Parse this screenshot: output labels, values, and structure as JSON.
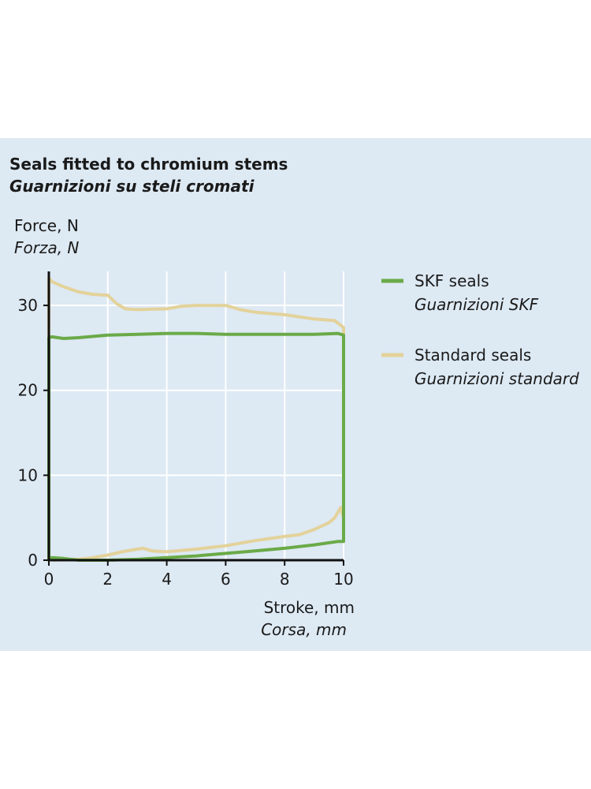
{
  "colors": {
    "background": "#dde9f3",
    "skf": "#6aaa48",
    "standard": "#e3d29a",
    "grid": "#ffffff",
    "axis": "#111111"
  },
  "chart_data": {
    "type": "line",
    "title": "Seals fitted to chromium stems",
    "subtitle": "Guarnizioni su steli cromati",
    "ylabel": "Force, N",
    "ylabel_it": "Forza, N",
    "xlabel": "Stroke, mm",
    "xlabel_it": "Corsa, mm",
    "xlim": [
      0,
      10
    ],
    "ylim": [
      0,
      34
    ],
    "xticks": [
      "0",
      "2",
      "4",
      "6",
      "8",
      "10"
    ],
    "yticks": [
      "0",
      "10",
      "20",
      "30"
    ],
    "grid": true,
    "legend_position": "right",
    "series": [
      {
        "name": "SKF seals",
        "name_it": "Guarnizioni SKF",
        "color_key": "skf",
        "x": [
          0,
          0,
          0.1,
          0.5,
          1,
          2,
          3,
          4,
          5,
          6,
          7,
          8,
          9,
          9.8,
          10,
          10,
          9.8,
          9,
          8,
          7,
          6,
          5,
          4,
          3,
          2,
          1,
          0.5,
          0.1,
          0,
          0
        ],
        "y": [
          0,
          26.2,
          26.3,
          26.1,
          26.2,
          26.5,
          26.6,
          26.7,
          26.7,
          26.6,
          26.6,
          26.6,
          26.6,
          26.7,
          26.5,
          2.2,
          2.2,
          1.8,
          1.4,
          1.1,
          0.8,
          0.5,
          0.3,
          0.1,
          0,
          0,
          0.2,
          0.3,
          0.2,
          0
        ]
      },
      {
        "name": "Standard seals",
        "name_it": "Guarnizioni standard",
        "color_key": "standard",
        "x": [
          0,
          0,
          0.1,
          0.5,
          1,
          1.5,
          2,
          2.3,
          2.6,
          3,
          4,
          4.5,
          5,
          6,
          6.5,
          7,
          8,
          9,
          9.7,
          10,
          10,
          9.9,
          9.7,
          9.5,
          9,
          8.5,
          8,
          7,
          6,
          5,
          4,
          3.5,
          3.2,
          3,
          2.5,
          2,
          1.5,
          1,
          0.5,
          0.2,
          0,
          0
        ],
        "y": [
          0,
          33.2,
          32.8,
          32.2,
          31.6,
          31.3,
          31.2,
          30.2,
          29.6,
          29.5,
          29.6,
          29.9,
          30.0,
          30.0,
          29.5,
          29.2,
          28.9,
          28.4,
          28.2,
          27.4,
          5.0,
          6.2,
          5.0,
          4.4,
          3.6,
          3.0,
          2.8,
          2.3,
          1.7,
          1.3,
          1.0,
          1.1,
          1.4,
          1.3,
          1.0,
          0.6,
          0.3,
          0.1,
          0.1,
          0,
          0.2,
          0
        ]
      }
    ]
  }
}
